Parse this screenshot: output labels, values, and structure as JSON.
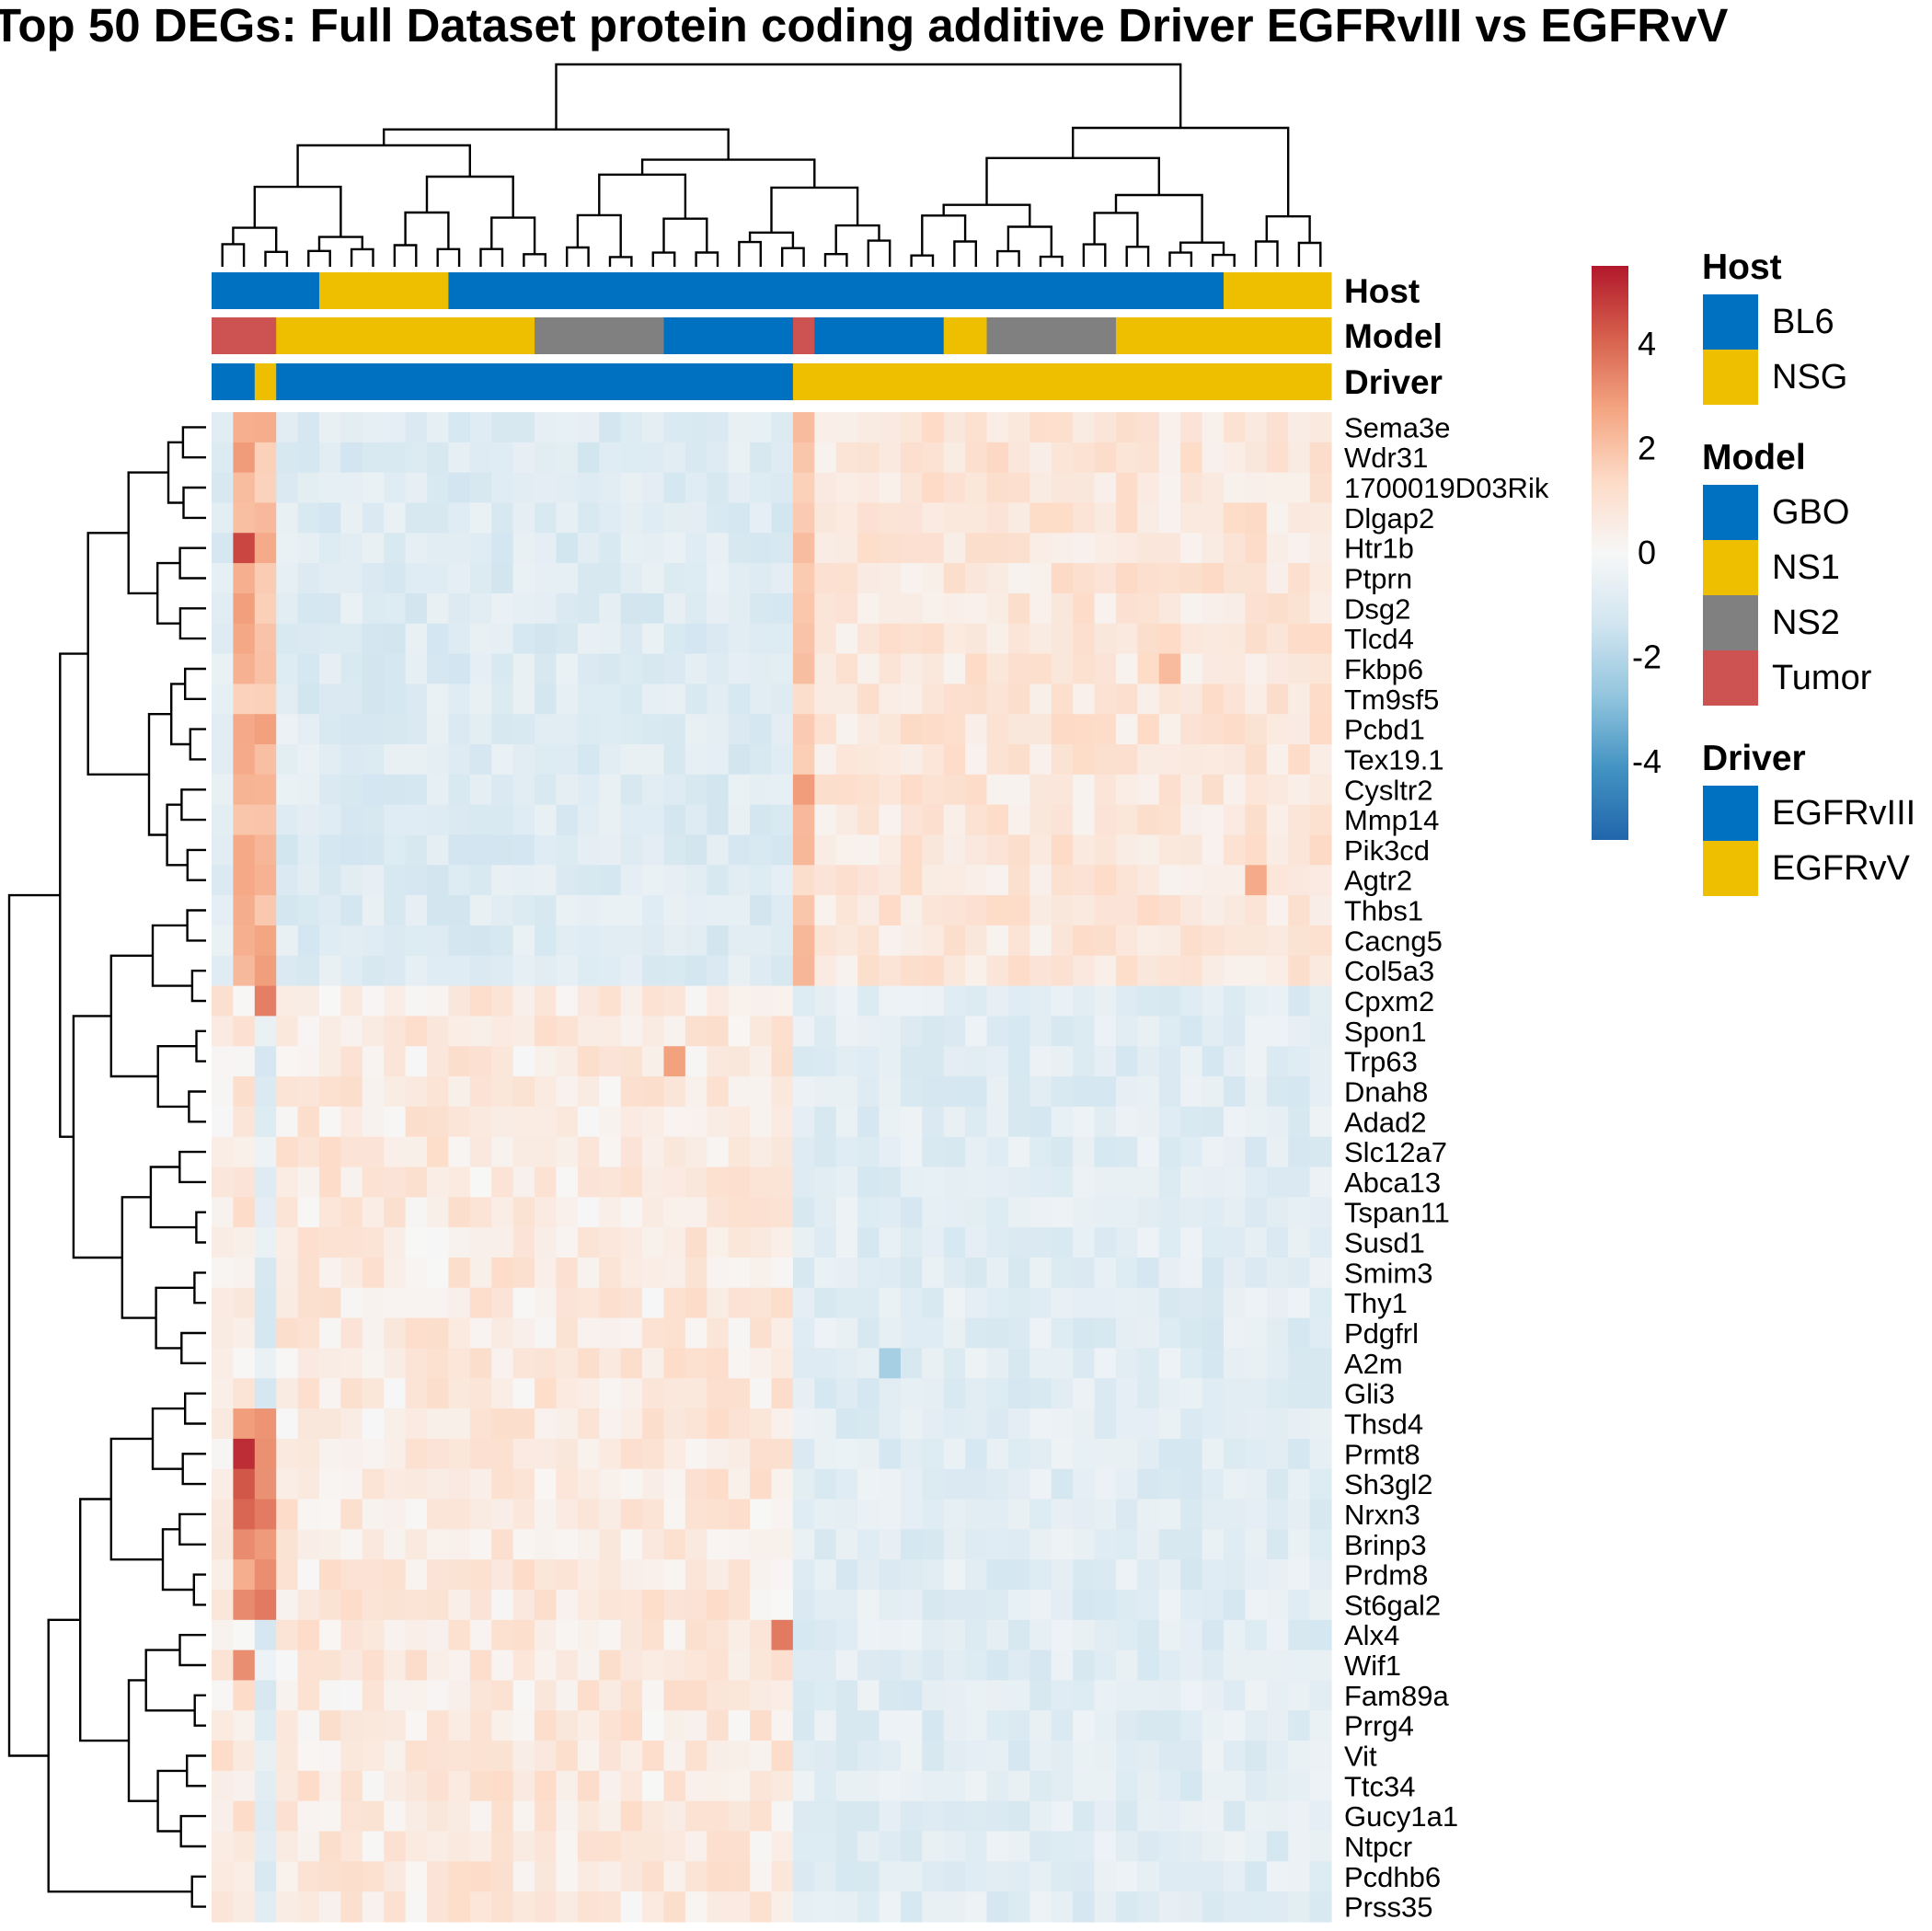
{
  "chart_data": {
    "type": "heatmap",
    "title": "Top 50 DEGs: Full Dataset protein coding additive Driver EGFRvIII vs EGFRvV",
    "n_columns": 52,
    "genes": [
      "Sema3e",
      "Wdr31",
      "1700019D03Rik",
      "Dlgap2",
      "Htr1b",
      "Ptprn",
      "Dsg2",
      "Tlcd4",
      "Fkbp6",
      "Tm9sf5",
      "Pcbd1",
      "Tex19.1",
      "Cysltr2",
      "Mmp14",
      "Pik3cd",
      "Agtr2",
      "Thbs1",
      "Cacng5",
      "Col5a3",
      "Cpxm2",
      "Spon1",
      "Trp63",
      "Dnah8",
      "Adad2",
      "Slc12a7",
      "Abca13",
      "Tspan11",
      "Susd1",
      "Smim3",
      "Thy1",
      "Pdgfrl",
      "A2m",
      "Gli3",
      "Thsd4",
      "Prmt8",
      "Sh3gl2",
      "Nrxn3",
      "Brinp3",
      "Prdm8",
      "St6gal2",
      "Alx4",
      "Wif1",
      "Fam89a",
      "Prrg4",
      "Vit",
      "Ttc34",
      "Gucy1a1",
      "Ntpcr",
      "Pcdhb6",
      "Prss35"
    ],
    "annotation_tracks": [
      {
        "name": "Host",
        "label": "Host",
        "segments": [
          [
            "BL6",
            0,
            4
          ],
          [
            "NSG",
            5,
            10
          ],
          [
            "BL6",
            11,
            46
          ],
          [
            "NSG",
            47,
            51
          ]
        ]
      },
      {
        "name": "Model",
        "label": "Model",
        "segments": [
          [
            "Tumor",
            0,
            2
          ],
          [
            "NS1",
            3,
            14
          ],
          [
            "NS2",
            15,
            20
          ],
          [
            "GBO",
            21,
            26
          ],
          [
            "Tumor",
            27,
            27
          ],
          [
            "GBO",
            28,
            33
          ],
          [
            "NS1",
            34,
            35
          ],
          [
            "NS2",
            36,
            41
          ],
          [
            "NS1",
            42,
            51
          ]
        ]
      },
      {
        "name": "Driver",
        "label": "Driver",
        "segments": [
          [
            "EGFRvIII",
            0,
            1
          ],
          [
            "EGFRvV",
            2,
            2
          ],
          [
            "EGFRvIII",
            3,
            26
          ],
          [
            "EGFRvV",
            27,
            51
          ]
        ]
      }
    ],
    "annotation_colors": {
      "Host": {
        "BL6": "#0070C0",
        "NSG": "#EEBF00"
      },
      "Model": {
        "GBO": "#0070C0",
        "NS1": "#EEBF00",
        "NS2": "#808080",
        "Tumor": "#CD5352"
      },
      "Driver": {
        "EGFRvIII": "#0070C0",
        "EGFRvV": "#EEBF00"
      }
    },
    "legend": {
      "groups": [
        {
          "title": "Host",
          "items": [
            "BL6",
            "NSG"
          ]
        },
        {
          "title": "Model",
          "items": [
            "GBO",
            "NS1",
            "NS2",
            "Tumor"
          ]
        },
        {
          "title": "Driver",
          "items": [
            "EGFRvIII",
            "EGFRvV"
          ]
        }
      ],
      "placement": "right"
    },
    "color_scale": {
      "range": [
        -5.5,
        5.5
      ],
      "ticks": [
        "4",
        "2",
        "0",
        "-2",
        "-4"
      ],
      "stops": [
        "#2166AC",
        "#4393C3",
        "#92C5DE",
        "#D1E5F0",
        "#F7F7F7",
        "#FDDBC7",
        "#F4A582",
        "#D6604D",
        "#B2182B"
      ]
    },
    "row_clusters": {
      "upper": {
        "genes": [
          "Sema3e",
          "Wdr31",
          "1700019D03Rik",
          "Dlgap2",
          "Htr1b",
          "Ptprn",
          "Dsg2",
          "Tlcd4",
          "Fkbp6",
          "Tm9sf5",
          "Pcbd1",
          "Tex19.1",
          "Cysltr2",
          "Mmp14",
          "Pik3cd",
          "Agtr2",
          "Thbs1",
          "Cacng5",
          "Col5a3"
        ],
        "pattern": "high in EGFRvV columns (28-51) and in columns 1-2 and 27, low in EGFRvIII columns"
      },
      "lower": {
        "genes": [
          "Cpxm2",
          "Spon1",
          "Trp63",
          "Dnah8",
          "Adad2",
          "Slc12a7",
          "Abca13",
          "Tspan11",
          "Susd1",
          "Smim3",
          "Thy1",
          "Pdgfrl",
          "A2m",
          "Gli3",
          "Thsd4",
          "Prmt8",
          "Sh3gl2",
          "Nrxn3",
          "Brinp3",
          "Prdm8",
          "St6gal2",
          "Alx4",
          "Wif1",
          "Fam89a",
          "Prrg4",
          "Vit",
          "Ttc34",
          "Gucy1a1",
          "Ntpcr",
          "Pcdhb6",
          "Prss35"
        ],
        "pattern": "high in EGFRvIII columns (1-27), low in EGFRvV columns"
      }
    },
    "highlights": [
      {
        "gene": "Htr1b",
        "column": 1,
        "value": 4.6
      },
      {
        "gene": "Prmt8",
        "column": 1,
        "value": 5.1
      },
      {
        "gene": "Sh3gl2",
        "column": 1,
        "value": 4.3
      },
      {
        "gene": "Nrxn3",
        "column": 1,
        "value": 4.0
      },
      {
        "gene": "Alx4",
        "column": 26,
        "value": 3.6
      },
      {
        "gene": "Wif1",
        "column": 1,
        "value": 3.2
      },
      {
        "gene": "Cpxm2",
        "column": 2,
        "value": 3.5
      },
      {
        "gene": "Trp63",
        "column": 21,
        "value": 2.8
      },
      {
        "gene": "Agtr2",
        "column": 48,
        "value": 2.6
      },
      {
        "gene": "Cysltr2",
        "column": 27,
        "value": 2.9
      },
      {
        "gene": "A2m",
        "column": 31,
        "value": -2.3
      },
      {
        "gene": "Fkbp6",
        "column": 44,
        "value": 2.2
      }
    ]
  }
}
